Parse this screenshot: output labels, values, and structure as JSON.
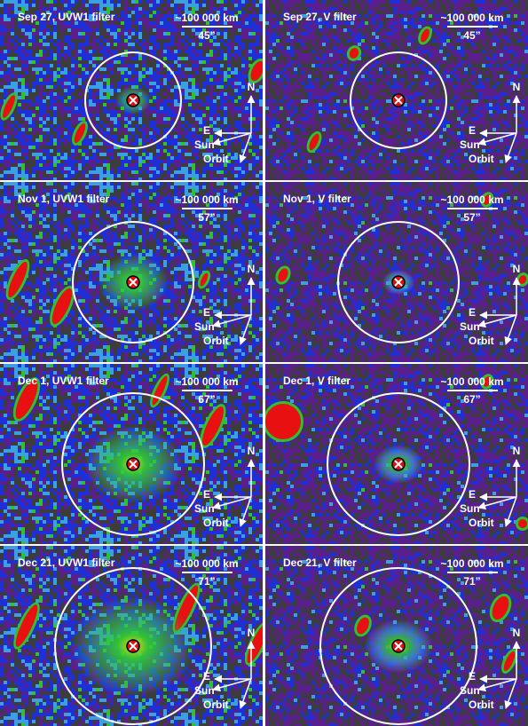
{
  "panels": [
    {
      "title": "Sep 27, UVW1 filter",
      "scale": "~100 000 km",
      "angle": "45”",
      "compass": {
        "north": "N",
        "east": "E",
        "sun": "Sun",
        "orbit": "Orbit"
      }
    },
    {
      "title": "Sep 27, V filter",
      "scale": "~100 000 km",
      "angle": "45”",
      "compass": {
        "north": "N",
        "east": "E",
        "sun": "Sun",
        "orbit": "Orbit"
      }
    },
    {
      "title": "Nov 1, UVW1 filter",
      "scale": "~100 000 km",
      "angle": "57”",
      "compass": {
        "north": "N",
        "east": "E",
        "sun": "Sun",
        "orbit": "Orbit"
      }
    },
    {
      "title": "Nov 1, V filter",
      "scale": "~100 000 km",
      "angle": "57”",
      "compass": {
        "north": "N",
        "east": "E",
        "sun": "Sun",
        "orbit": "Orbit"
      }
    },
    {
      "title": "Dec 1, UVW1 filter",
      "scale": "~100 000 km",
      "angle": "67”",
      "compass": {
        "north": "N",
        "east": "E",
        "sun": "Sun",
        "orbit": "Orbit"
      }
    },
    {
      "title": "Dec 1, V filter",
      "scale": "~100 000 km",
      "angle": "67”",
      "compass": {
        "north": "N",
        "east": "E",
        "sun": "Sun",
        "orbit": "Orbit"
      }
    },
    {
      "title": "Dec 21, UVW1 filter",
      "scale": "~100 000 km",
      "angle": "71”",
      "compass": {
        "north": "N",
        "east": "E",
        "sun": "Sun",
        "orbit": "Orbit"
      }
    },
    {
      "title": "Dec 21, V filter",
      "scale": "~100 000 km",
      "angle": "71”",
      "compass": {
        "north": "N",
        "east": "E",
        "sun": "Sun",
        "orbit": "Orbit"
      }
    }
  ]
}
